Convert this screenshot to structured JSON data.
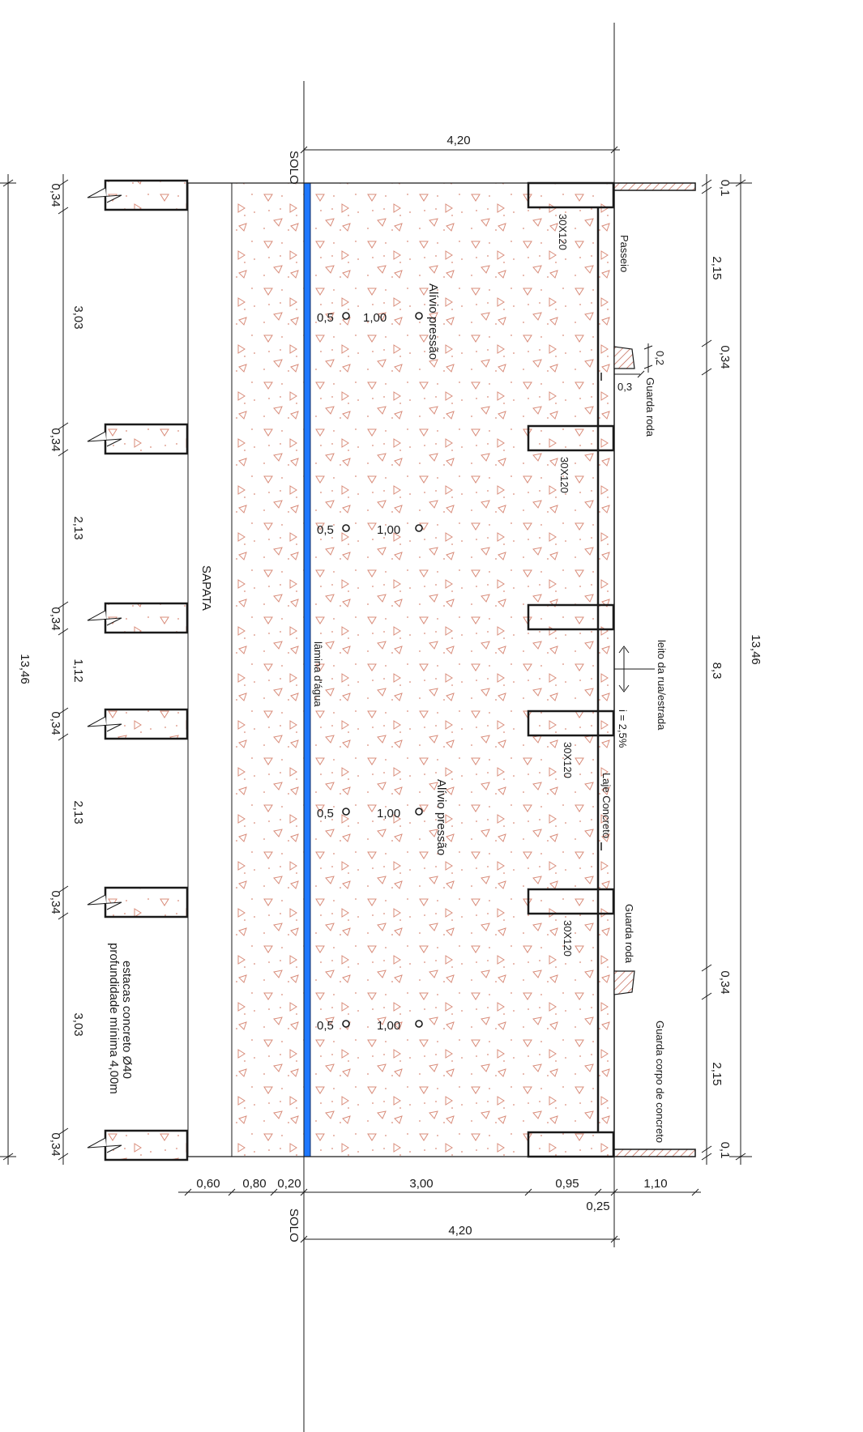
{
  "colors": {
    "line": "#1a1a1a",
    "fill_hatch": "#d98c7a",
    "water": "#1f78ff",
    "concrete_bg": "#ffffff"
  },
  "labels": {
    "solo_top": "SOLO",
    "solo_bottom": "SOLO",
    "sapata": "SAPATA",
    "lamina": "lâmina d'água",
    "alivio_1": "Alívio pressão",
    "alivio_2": "Alívio pressão",
    "passeio": "Passeio",
    "guarda_roda_1": "Guarda roda",
    "guarda_roda_2": "Guarda roda",
    "leito": "leito da rua/estrada",
    "inclinacao": "i = 2,5%",
    "laje": "Laje Concreto",
    "guarda_corpo": "Guarda corpo de concreto",
    "estacas_1": "estacas concreto Ø40",
    "estacas_2": "profundidade mínima 4,00m",
    "viga_1": "30X120",
    "viga_2": "30X120",
    "viga_3": "30X120",
    "viga_4": "30X120"
  },
  "pipes": [
    {
      "small": "0,5",
      "large": "1,00"
    },
    {
      "small": "0,5",
      "large": "1,00"
    },
    {
      "small": "0,5",
      "large": "1,00"
    },
    {
      "small": "0,5",
      "large": "1,00"
    }
  ],
  "dims": {
    "top_width": "4,20",
    "bottom_width": "4,20",
    "total_left": "13,46",
    "total_right": "13,46",
    "right_middle": "8,3",
    "left_stack": [
      "0,34",
      "3,03",
      "0,34",
      "2,13",
      "0,34",
      "1,12",
      "0,34",
      "2,13",
      "0,34",
      "3,03",
      "0,34"
    ],
    "right_top": [
      "0,1",
      "2,15",
      "0,34"
    ],
    "right_bottom": [
      "0,34",
      "2,15",
      "0,1"
    ],
    "guard_small": [
      "0,2",
      "0,3"
    ],
    "bottom_row": [
      "0,60",
      "0,80",
      "0,20",
      "3,00",
      "0,95",
      "1,10"
    ],
    "bottom_extra": "0,25"
  }
}
